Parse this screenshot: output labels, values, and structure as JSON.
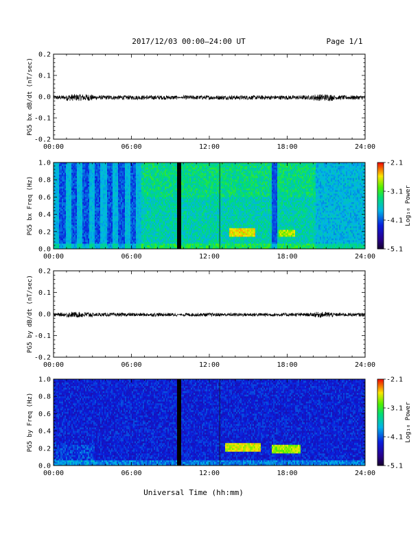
{
  "header": {
    "title": "2017/12/03  00:00–24:00 UT",
    "page": "Page 1/1"
  },
  "xaxis": {
    "ticks": [
      "00:00",
      "06:00",
      "12:00",
      "18:00",
      "24:00"
    ],
    "label": "Universal Time (hh:mm)"
  },
  "colorbar": {
    "ticks": [
      "-2.1",
      "-3.1",
      "-4.1",
      "-5.1"
    ],
    "label": "Log₁₀ Power"
  },
  "chart_data": [
    {
      "type": "line",
      "title": "",
      "xlabel": "",
      "ylabel": "PG5 bx dB/dt (nT/sec)",
      "xlim": [
        0,
        24
      ],
      "ylim": [
        -0.2,
        0.2
      ],
      "yticks": [
        "0.2",
        "0.1",
        "0.0",
        "-0.1",
        "-0.2"
      ],
      "series": [
        {
          "name": "",
          "noise_amplitude": 0.01
        }
      ]
    },
    {
      "type": "heatmap",
      "title": "",
      "ylabel": "PG5 bx Freq (Hz)",
      "xlim": [
        0,
        24
      ],
      "ylim": [
        0.0,
        1.0
      ],
      "yticks": [
        "1.0",
        "0.8",
        "0.6",
        "0.4",
        "0.2",
        "0.0"
      ],
      "colorscale": "rainbow",
      "clim": [
        -5.1,
        -2.1
      ]
    },
    {
      "type": "line",
      "title": "",
      "ylabel": "PG5 by dB/dt (nT/sec)",
      "xlim": [
        0,
        24
      ],
      "ylim": [
        -0.2,
        0.2
      ],
      "yticks": [
        "0.2",
        "0.1",
        "0.0",
        "-0.1",
        "-0.2"
      ],
      "series": [
        {
          "name": "",
          "noise_amplitude": 0.008
        }
      ]
    },
    {
      "type": "heatmap",
      "title": "",
      "ylabel": "PG5 by Freq (Hz)",
      "xlim": [
        0,
        24
      ],
      "ylim": [
        0.0,
        1.0
      ],
      "yticks": [
        "1.0",
        "0.8",
        "0.6",
        "0.4",
        "0.2",
        "0.0"
      ],
      "colorscale": "rainbow",
      "clim": [
        -5.1,
        -2.1
      ]
    }
  ]
}
